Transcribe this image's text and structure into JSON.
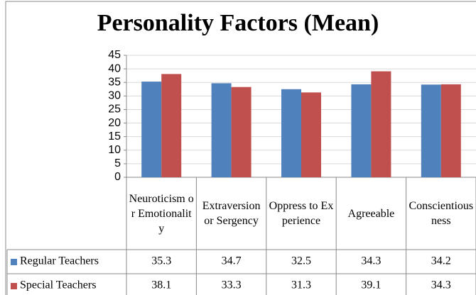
{
  "chart_data": {
    "type": "bar",
    "title": "Personality Factors (Mean)",
    "categories": [
      "Neuroticism or Emotionality",
      "Extraversion or Sergency",
      "Oppress to Experience",
      "Agreeable",
      "Conscientiousness"
    ],
    "series": [
      {
        "name": "Regular Teachers",
        "color": "#4f81bd",
        "values": [
          35.3,
          34.7,
          32.5,
          34.3,
          34.2
        ]
      },
      {
        "name": "Special Teachers",
        "color": "#c0504d",
        "values": [
          38.1,
          33.3,
          31.3,
          39.1,
          34.3
        ]
      }
    ],
    "ylim": [
      0,
      45
    ],
    "yticks": [
      0,
      5,
      10,
      15,
      20,
      25,
      30,
      35,
      40,
      45
    ],
    "grid": true
  }
}
